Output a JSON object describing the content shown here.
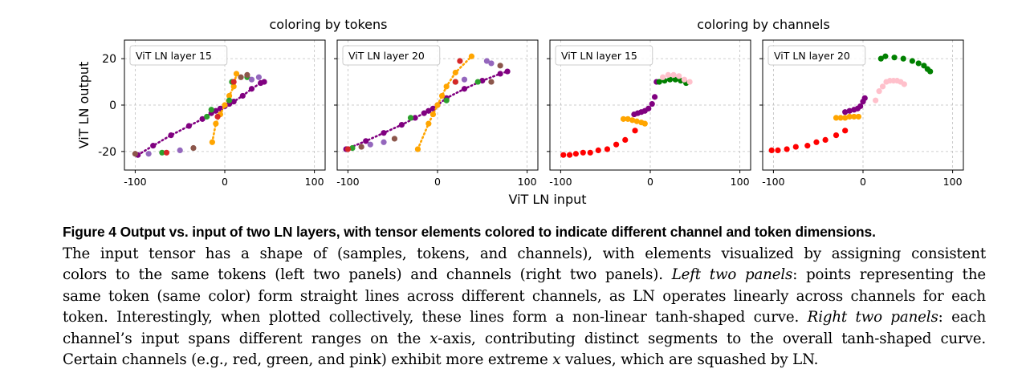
{
  "group_titles": {
    "tokens": "coloring by tokens",
    "channels": "coloring by channels"
  },
  "axes": {
    "ylabel": "ViT LN output",
    "xlabel": "ViT LN input",
    "xticks": [
      "-100",
      "0",
      "100"
    ],
    "yticks": [
      "20",
      "0",
      "-20"
    ]
  },
  "colors": {
    "purple": "#800080",
    "orange": "#ffa500",
    "red": "#ff0000",
    "green": "#008000",
    "pink": "#ffc0cb",
    "violet": "#9467bd",
    "brown": "#8c564b",
    "tgreen": "#2ca02c",
    "tred": "#d62728",
    "blue": "#1f77b4",
    "grid": "#bfbfbf"
  },
  "chart_data": [
    {
      "type": "scatter",
      "panel": "tokens-layer15",
      "label": "ViT LN layer 15",
      "xlim": [
        -112,
        112
      ],
      "ylim": [
        -28,
        28
      ],
      "grid": true,
      "series": [
        {
          "name": "token-purple",
          "color": "purple",
          "dotted": true,
          "x": [
            -97,
            -80,
            -60,
            -40,
            -25,
            -15,
            -10,
            -5,
            0,
            5,
            10,
            20,
            30,
            40,
            44
          ],
          "y": [
            -21.5,
            -17.5,
            -13,
            -9,
            -6,
            -3.5,
            -2.5,
            -1.5,
            -0.5,
            0.5,
            1.5,
            4,
            7,
            9.5,
            10
          ]
        },
        {
          "name": "token-orange",
          "color": "orange",
          "dotted": true,
          "x": [
            -14,
            -10,
            -5,
            0,
            5,
            10,
            13
          ],
          "y": [
            -16,
            -8,
            -4,
            0,
            4,
            8,
            13.5
          ]
        },
        {
          "name": "token-mixed",
          "color": "tgreen",
          "x": [
            -70,
            -20,
            -15,
            5,
            8,
            25
          ],
          "y": [
            -20.5,
            -5,
            -2,
            2,
            10,
            12
          ]
        },
        {
          "name": "token-violet",
          "color": "violet",
          "x": [
            -50,
            -85,
            30,
            38
          ],
          "y": [
            -19.5,
            -21,
            11,
            12
          ]
        },
        {
          "name": "token-brown",
          "color": "brown",
          "x": [
            -35,
            -100,
            25,
            18
          ],
          "y": [
            -18.5,
            -21,
            13,
            12
          ]
        },
        {
          "name": "token-red",
          "color": "tred",
          "x": [
            -65,
            10,
            -8
          ],
          "y": [
            -20.5,
            10,
            -5
          ]
        }
      ]
    },
    {
      "type": "scatter",
      "panel": "tokens-layer20",
      "label": "ViT LN layer 20",
      "xlim": [
        -112,
        112
      ],
      "ylim": [
        -28,
        28
      ],
      "grid": true,
      "series": [
        {
          "name": "token-purple",
          "color": "purple",
          "dotted": true,
          "x": [
            -102,
            -80,
            -60,
            -40,
            -25,
            -15,
            -10,
            -5,
            0,
            10,
            30,
            50,
            70,
            78
          ],
          "y": [
            -19,
            -15.5,
            -12,
            -8.5,
            -5.5,
            -3.5,
            -2.5,
            -1.5,
            0,
            3,
            7,
            10.5,
            13.5,
            14.5
          ]
        },
        {
          "name": "token-orange",
          "color": "orange",
          "dotted": true,
          "x": [
            -22,
            -10,
            -5,
            0,
            5,
            10,
            20,
            38
          ],
          "y": [
            -19,
            -8,
            -4,
            0,
            4,
            8,
            14,
            21
          ]
        },
        {
          "name": "token-mixed",
          "color": "tgreen",
          "x": [
            -95,
            -30,
            10,
            20,
            45
          ],
          "y": [
            -18.5,
            -5.5,
            2,
            10,
            10
          ]
        },
        {
          "name": "token-violet",
          "color": "violet",
          "x": [
            -60,
            -75,
            30,
            55,
            60
          ],
          "y": [
            -16,
            -17,
            11,
            19,
            18
          ]
        },
        {
          "name": "token-brown",
          "color": "brown",
          "x": [
            -48,
            -85,
            60,
            70
          ],
          "y": [
            -14.5,
            -18,
            10,
            17
          ]
        },
        {
          "name": "token-red",
          "color": "tred",
          "x": [
            -100,
            25,
            20
          ],
          "y": [
            -19,
            19,
            10
          ]
        }
      ]
    },
    {
      "type": "scatter",
      "panel": "channels-layer15",
      "label": "ViT LN layer 15",
      "xlim": [
        -112,
        112
      ],
      "ylim": [
        -28,
        28
      ],
      "grid": true,
      "series": [
        {
          "name": "channel-red",
          "color": "red",
          "x": [
            -97,
            -90,
            -83,
            -75,
            -67,
            -58,
            -48,
            -38,
            -28,
            -17
          ],
          "y": [
            -21.5,
            -21.5,
            -21,
            -20.5,
            -20.5,
            -19.5,
            -19,
            -17,
            -15,
            -11
          ]
        },
        {
          "name": "channel-orange",
          "color": "orange",
          "x": [
            -30,
            -25,
            -20,
            -15,
            -10,
            -6
          ],
          "y": [
            -6,
            -6,
            -6.5,
            -7,
            -7.5,
            -8
          ]
        },
        {
          "name": "channel-purple",
          "color": "purple",
          "x": [
            -18,
            -14,
            -10,
            -6,
            -2,
            2,
            5,
            7
          ],
          "y": [
            -4,
            -3.5,
            -3,
            -2.5,
            -1.5,
            0.5,
            3.5,
            10
          ]
        },
        {
          "name": "channel-green",
          "color": "green",
          "x": [
            10,
            16,
            22,
            28,
            34,
            40
          ],
          "y": [
            10,
            10.5,
            11,
            11,
            10.5,
            9.5
          ]
        },
        {
          "name": "channel-pink",
          "color": "pink",
          "x": [
            14,
            20,
            26,
            32,
            38,
            44
          ],
          "y": [
            12,
            13,
            13,
            12.5,
            11,
            10
          ]
        }
      ]
    },
    {
      "type": "scatter",
      "panel": "channels-layer20",
      "label": "ViT LN layer 20",
      "xlim": [
        -112,
        112
      ],
      "ylim": [
        -28,
        28
      ],
      "grid": true,
      "series": [
        {
          "name": "channel-red",
          "color": "red",
          "x": [
            -102,
            -95,
            -85,
            -75,
            -62,
            -52,
            -42,
            -30,
            -20
          ],
          "y": [
            -19.5,
            -19.5,
            -19,
            -18,
            -17.5,
            -16,
            -15,
            -13,
            -11
          ]
        },
        {
          "name": "channel-orange",
          "color": "orange",
          "x": [
            -30,
            -25,
            -20,
            -15,
            -10,
            -5
          ],
          "y": [
            -5.5,
            -5.5,
            -5.5,
            -5,
            -5,
            -5
          ]
        },
        {
          "name": "channel-purple",
          "color": "purple",
          "x": [
            -20,
            -15,
            -10,
            -6,
            -3,
            0,
            2
          ],
          "y": [
            -3,
            -2.5,
            -2,
            -1.5,
            -0.5,
            1.5,
            3
          ]
        },
        {
          "name": "channel-green",
          "color": "green",
          "x": [
            20,
            25,
            35,
            45,
            55,
            62,
            68,
            72,
            75
          ],
          "y": [
            20,
            21,
            20.5,
            20,
            19,
            18,
            17,
            15.5,
            14.5
          ]
        },
        {
          "name": "channel-pink",
          "color": "pink",
          "x": [
            14,
            18,
            22,
            26,
            30,
            34,
            38,
            42,
            46
          ],
          "y": [
            2,
            6,
            8,
            10,
            10.5,
            10.5,
            10.5,
            10,
            9
          ]
        }
      ]
    }
  ],
  "caption": {
    "title": "Figure 4  Output vs. input of two LN layers, with tensor elements colored to indicate different channel and token dimensions.",
    "line1": "The input tensor has a shape of (samples, tokens, and channels), with elements visualized by assigning consistent",
    "line2": "colors to the same tokens (left two panels) and channels (right two panels).",
    "line2_em": "Left two panels",
    "line2_tail": ": points representing the",
    "line3": "same token (same color) form straight lines across different channels, as LN operates linearly across channels for each",
    "line4": "token. Interestingly, when plotted collectively, these lines form a non-linear tanh-shaped curve.",
    "line4_em": "Right two panels",
    "line4_tail": ": each",
    "line5_a": "channel’s input spans different ranges on the",
    "line5_var": "x",
    "line5_b": "-axis, contributing distinct segments to the overall tanh-shaped curve.",
    "line6_a": "Certain channels (e.g., red, green, and pink) exhibit more extreme",
    "line6_var": "x",
    "line6_b": "values, which are squashed by LN."
  }
}
